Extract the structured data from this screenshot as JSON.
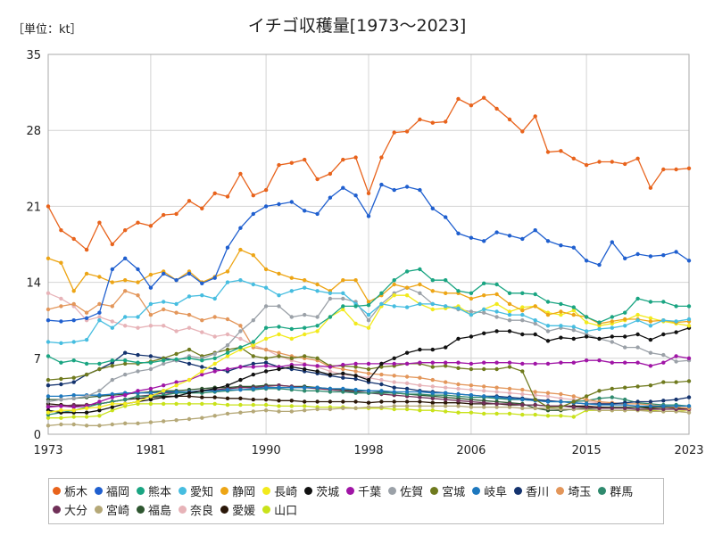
{
  "unit_label": "［単位：kt］",
  "chart_data": {
    "type": "line",
    "title": "イチゴ収穫量[1973〜2023]",
    "xlabel": "",
    "ylabel": "",
    "xlim": [
      1973,
      2023
    ],
    "ylim": [
      0,
      35
    ],
    "xticks": [
      1973,
      1981,
      1990,
      1998,
      2006,
      2015,
      2023
    ],
    "yticks": [
      0,
      7,
      14,
      21,
      28,
      35
    ],
    "grid": true,
    "legend_position": "bottom",
    "series": [
      {
        "name": "栃木",
        "color": "#e8631c",
        "start": 1973,
        "values": [
          21.0,
          18.8,
          18.0,
          17.0,
          19.5,
          17.5,
          18.8,
          19.5,
          19.2,
          20.2,
          20.3,
          21.5,
          20.8,
          22.2,
          21.9,
          24.0,
          22.0,
          22.5,
          24.8,
          25.0,
          25.3,
          23.5,
          24.0,
          25.3,
          25.5,
          22.2,
          25.5,
          27.8,
          27.9,
          29.0,
          28.7,
          28.8,
          30.9,
          30.3,
          31.0,
          30.0,
          29.0,
          27.9,
          29.3,
          26.0,
          26.1,
          25.4,
          24.8,
          25.1,
          25.1,
          24.9,
          25.4,
          22.7,
          24.4,
          24.4,
          24.5
        ]
      },
      {
        "name": "福岡",
        "color": "#1f5fcf",
        "start": 1973,
        "values": [
          10.5,
          10.4,
          10.5,
          10.7,
          11.2,
          15.2,
          16.2,
          15.2,
          13.5,
          14.8,
          14.2,
          14.8,
          13.9,
          14.4,
          17.2,
          19.0,
          20.3,
          21.0,
          21.2,
          21.4,
          20.6,
          20.3,
          21.8,
          22.7,
          22.0,
          20.1,
          23.0,
          22.5,
          22.8,
          22.5,
          20.8,
          20.0,
          18.5,
          18.1,
          17.8,
          18.6,
          18.3,
          18.0,
          18.8,
          17.8,
          17.4,
          17.2,
          16.0,
          15.6,
          17.7,
          16.2,
          16.6,
          16.4,
          16.5,
          16.8,
          16.0
        ]
      },
      {
        "name": "熊本",
        "color": "#1aa582",
        "start": 1973,
        "values": [
          7.2,
          6.6,
          6.8,
          6.5,
          6.5,
          6.8,
          6.8,
          6.6,
          6.6,
          6.8,
          6.9,
          7.0,
          6.8,
          7.0,
          7.5,
          8.0,
          8.5,
          9.8,
          9.9,
          9.7,
          9.8,
          10.0,
          10.8,
          11.8,
          11.8,
          11.9,
          13.0,
          14.2,
          15.0,
          15.2,
          14.2,
          14.2,
          13.2,
          13.0,
          13.9,
          13.8,
          13.0,
          13.0,
          12.9,
          12.2,
          12.0,
          11.7,
          10.8,
          10.3,
          10.8,
          11.2,
          12.5,
          12.2,
          12.2,
          11.8,
          11.8
        ]
      },
      {
        "name": "愛知",
        "color": "#46bde0",
        "start": 1973,
        "values": [
          8.5,
          8.4,
          8.5,
          8.7,
          10.5,
          9.8,
          10.8,
          10.8,
          12.0,
          12.2,
          12.0,
          12.7,
          12.8,
          12.5,
          14.0,
          14.2,
          13.8,
          13.5,
          12.8,
          13.2,
          13.5,
          13.2,
          13.0,
          13.0,
          12.0,
          11.0,
          12.0,
          11.8,
          11.7,
          12.0,
          12.0,
          11.8,
          11.6,
          11.0,
          11.5,
          11.3,
          11.0,
          11.0,
          10.5,
          10.0,
          10.0,
          9.9,
          9.5,
          9.7,
          9.8,
          10.0,
          10.5,
          10.0,
          10.5,
          10.4,
          10.6
        ]
      },
      {
        "name": "静岡",
        "color": "#eda515",
        "start": 1973,
        "values": [
          16.2,
          15.8,
          13.2,
          14.8,
          14.5,
          14.0,
          14.2,
          14.0,
          14.7,
          15.0,
          14.2,
          15.0,
          14.0,
          14.5,
          15.0,
          17.0,
          16.5,
          15.2,
          14.8,
          14.4,
          14.2,
          13.8,
          13.2,
          14.2,
          14.2,
          12.2,
          12.8,
          13.8,
          13.5,
          13.8,
          13.2,
          13.0,
          13.0,
          12.5,
          12.8,
          12.9,
          12.0,
          11.4,
          11.8,
          11.0,
          11.3,
          11.0,
          10.8,
          10.2,
          10.4,
          10.6,
          10.6,
          10.4,
          10.5,
          10.3,
          10.4
        ]
      },
      {
        "name": "長崎",
        "color": "#f2ea1c",
        "start": 1973,
        "values": [
          2.0,
          2.2,
          2.2,
          2.4,
          2.5,
          2.8,
          2.8,
          3.0,
          3.5,
          4.0,
          4.5,
          5.0,
          5.8,
          6.5,
          7.2,
          7.8,
          8.2,
          8.8,
          9.2,
          8.8,
          9.2,
          9.5,
          10.8,
          11.5,
          10.2,
          9.8,
          11.8,
          12.8,
          12.8,
          12.0,
          11.5,
          11.6,
          11.8,
          11.0,
          11.5,
          12.0,
          11.3,
          11.7,
          11.8,
          11.2,
          11.0,
          11.4,
          10.3,
          10.0,
          10.2,
          10.5,
          11.0,
          10.7,
          10.4,
          10.2,
          10.0
        ]
      },
      {
        "name": "茨城",
        "color": "#111111",
        "start": 1973,
        "values": [
          2.2,
          2.0,
          2.0,
          2.0,
          2.2,
          2.5,
          2.8,
          3.0,
          3.2,
          3.4,
          3.5,
          3.8,
          4.0,
          4.2,
          4.5,
          5.0,
          5.5,
          5.8,
          6.0,
          6.2,
          6.0,
          5.8,
          5.5,
          5.6,
          5.4,
          5.0,
          6.5,
          7.0,
          7.5,
          7.8,
          7.8,
          8.0,
          8.8,
          9.0,
          9.3,
          9.5,
          9.5,
          9.2,
          9.2,
          8.6,
          8.9,
          8.8,
          9.0,
          8.8,
          9.0,
          9.0,
          9.2,
          8.7,
          9.2,
          9.4,
          9.8
        ]
      },
      {
        "name": "千葉",
        "color": "#a015a6",
        "start": 1973,
        "values": [
          2.5,
          2.6,
          2.5,
          2.6,
          3.0,
          3.4,
          3.6,
          4.0,
          4.2,
          4.5,
          4.8,
          5.0,
          5.5,
          5.8,
          6.0,
          6.2,
          6.2,
          6.3,
          6.2,
          6.4,
          6.4,
          6.3,
          6.2,
          6.4,
          6.5,
          6.5,
          6.5,
          6.5,
          6.5,
          6.6,
          6.6,
          6.6,
          6.6,
          6.5,
          6.6,
          6.6,
          6.6,
          6.5,
          6.5,
          6.5,
          6.6,
          6.6,
          6.8,
          6.8,
          6.6,
          6.6,
          6.6,
          6.3,
          6.6,
          7.2,
          7.0
        ]
      },
      {
        "name": "佐賀",
        "color": "#9ba1a8",
        "start": 1973,
        "values": [
          3.0,
          3.2,
          3.3,
          3.5,
          4.0,
          5.0,
          5.5,
          5.8,
          6.0,
          6.5,
          6.8,
          7.2,
          7.0,
          7.4,
          8.2,
          9.5,
          10.5,
          11.8,
          11.8,
          10.8,
          11.0,
          10.8,
          12.5,
          12.5,
          12.2,
          10.5,
          12.0,
          13.0,
          13.5,
          13.0,
          12.0,
          11.8,
          11.5,
          11.3,
          11.2,
          10.8,
          10.5,
          10.5,
          10.2,
          9.5,
          9.8,
          9.6,
          9.2,
          8.8,
          8.5,
          8.0,
          8.0,
          7.5,
          7.3,
          6.7,
          6.8
        ]
      },
      {
        "name": "宮城",
        "color": "#6f7a1e",
        "start": 1973,
        "values": [
          5.0,
          5.1,
          5.2,
          5.5,
          6.0,
          6.3,
          6.5,
          6.5,
          6.7,
          7.0,
          7.4,
          7.8,
          7.2,
          7.5,
          7.8,
          8.0,
          7.2,
          7.0,
          7.2,
          7.0,
          7.2,
          7.0,
          6.3,
          6.3,
          6.2,
          6.0,
          6.2,
          6.3,
          6.5,
          6.5,
          6.2,
          6.3,
          6.1,
          6.0,
          6.0,
          6.0,
          6.2,
          5.8,
          3.2,
          2.5,
          2.5,
          3.0,
          3.5,
          4.0,
          4.2,
          4.3,
          4.4,
          4.5,
          4.8,
          4.8,
          4.9
        ]
      },
      {
        "name": "岐阜",
        "color": "#1d78be",
        "start": 1973,
        "values": [
          3.5,
          3.5,
          3.6,
          3.6,
          3.6,
          3.7,
          3.8,
          3.8,
          3.8,
          3.9,
          3.9,
          3.9,
          4.0,
          4.0,
          4.1,
          4.1,
          4.2,
          4.3,
          4.3,
          4.3,
          4.3,
          4.3,
          4.2,
          4.2,
          4.1,
          4.0,
          4.0,
          3.9,
          3.9,
          3.9,
          3.8,
          3.8,
          3.7,
          3.6,
          3.5,
          3.4,
          3.3,
          3.2,
          3.1,
          3.0,
          3.0,
          2.9,
          2.8,
          2.7,
          2.7,
          2.7,
          2.6,
          2.6,
          2.6,
          2.6,
          2.6
        ]
      },
      {
        "name": "香川",
        "color": "#14336e",
        "start": 1973,
        "values": [
          4.5,
          4.6,
          4.8,
          5.5,
          6.0,
          6.6,
          7.5,
          7.3,
          7.2,
          7.0,
          6.8,
          6.5,
          6.2,
          6.0,
          5.8,
          6.2,
          6.5,
          6.6,
          6.2,
          6.0,
          5.8,
          5.6,
          5.4,
          5.2,
          5.1,
          4.8,
          4.6,
          4.3,
          4.2,
          4.0,
          3.9,
          3.8,
          3.7,
          3.6,
          3.5,
          3.5,
          3.4,
          3.3,
          3.2,
          3.1,
          3.0,
          2.9,
          2.8,
          2.8,
          2.8,
          2.9,
          3.0,
          3.0,
          3.1,
          3.2,
          3.4
        ]
      },
      {
        "name": "埼玉",
        "color": "#e3965a",
        "start": 1973,
        "values": [
          11.5,
          11.8,
          12.0,
          11.2,
          12.0,
          11.8,
          13.2,
          12.8,
          11.0,
          11.5,
          11.2,
          11.0,
          10.5,
          10.8,
          10.6,
          10.0,
          8.0,
          7.8,
          7.5,
          7.2,
          7.0,
          6.8,
          6.2,
          6.0,
          5.8,
          5.6,
          5.5,
          5.4,
          5.3,
          5.2,
          5.0,
          4.8,
          4.6,
          4.5,
          4.4,
          4.3,
          4.2,
          4.1,
          3.9,
          3.8,
          3.7,
          3.5,
          3.2,
          3.0,
          2.9,
          2.8,
          2.8,
          2.7,
          2.6,
          2.5,
          2.4
        ]
      },
      {
        "name": "群馬",
        "color": "#2f8a6e",
        "start": 1973,
        "values": [
          1.8,
          2.0,
          2.2,
          2.5,
          2.8,
          3.0,
          3.2,
          3.5,
          3.5,
          3.6,
          3.8,
          3.8,
          3.8,
          3.9,
          4.0,
          4.1,
          4.1,
          4.2,
          4.2,
          4.1,
          4.0,
          4.0,
          3.9,
          3.9,
          3.8,
          3.8,
          3.8,
          3.8,
          3.7,
          3.7,
          3.6,
          3.6,
          3.5,
          3.4,
          3.4,
          3.3,
          3.2,
          3.2,
          3.1,
          3.0,
          3.0,
          3.0,
          3.1,
          3.3,
          3.4,
          3.2,
          2.9,
          2.8,
          2.7,
          2.7,
          2.6
        ]
      },
      {
        "name": "大分",
        "color": "#703058",
        "start": 1973,
        "values": [
          2.6,
          2.6,
          2.7,
          2.7,
          2.8,
          3.0,
          3.2,
          3.5,
          3.6,
          3.8,
          3.8,
          3.9,
          4.0,
          4.1,
          4.2,
          4.3,
          4.3,
          4.4,
          4.5,
          4.4,
          4.3,
          4.2,
          4.1,
          4.0,
          3.9,
          3.8,
          3.7,
          3.6,
          3.5,
          3.4,
          3.3,
          3.2,
          3.1,
          3.0,
          2.9,
          2.8,
          2.8,
          2.7,
          2.7,
          2.6,
          2.6,
          2.5,
          2.5,
          2.4,
          2.4,
          2.4,
          2.3,
          2.3,
          2.3,
          2.3,
          2.3
        ]
      },
      {
        "name": "宮崎",
        "color": "#b5a877",
        "start": 1973,
        "values": [
          0.8,
          0.9,
          0.9,
          0.8,
          0.8,
          0.9,
          1.0,
          1.0,
          1.1,
          1.2,
          1.3,
          1.4,
          1.5,
          1.7,
          1.9,
          2.0,
          2.1,
          2.2,
          2.1,
          2.1,
          2.2,
          2.3,
          2.3,
          2.4,
          2.4,
          2.5,
          2.5,
          2.6,
          2.6,
          2.6,
          2.6,
          2.6,
          2.6,
          2.5,
          2.5,
          2.5,
          2.5,
          2.4,
          2.4,
          2.4,
          2.3,
          2.3,
          2.3,
          2.2,
          2.2,
          2.2,
          2.2,
          2.1,
          2.1,
          2.1,
          2.0
        ]
      },
      {
        "name": "福島",
        "color": "#2e5630",
        "start": 1973,
        "values": [
          3.2,
          3.2,
          3.3,
          3.4,
          3.5,
          3.6,
          3.7,
          3.8,
          3.9,
          4.0,
          4.0,
          4.1,
          4.2,
          4.3,
          4.3,
          4.4,
          4.4,
          4.5,
          4.5,
          4.4,
          4.4,
          4.3,
          4.2,
          4.1,
          4.0,
          4.0,
          3.9,
          3.8,
          3.7,
          3.6,
          3.5,
          3.4,
          3.3,
          3.2,
          3.1,
          3.0,
          2.9,
          2.8,
          2.4,
          2.2,
          2.2,
          2.3,
          2.4,
          2.4,
          2.5,
          2.5,
          2.5,
          2.5,
          2.5,
          2.5,
          2.4
        ]
      },
      {
        "name": "奈良",
        "color": "#e7b3b8",
        "start": 1973,
        "values": [
          13.0,
          12.5,
          11.8,
          10.5,
          10.8,
          10.4,
          10.0,
          9.8,
          10.0,
          10.0,
          9.5,
          9.8,
          9.4,
          9.0,
          9.2,
          8.8,
          8.2,
          7.8,
          7.2,
          6.8,
          6.5,
          6.2,
          5.8,
          5.5,
          5.4,
          5.2,
          5.0,
          4.8,
          4.7,
          4.5,
          4.4,
          4.3,
          4.2,
          4.1,
          4.0,
          3.9,
          3.8,
          3.7,
          3.6,
          3.5,
          3.3,
          3.2,
          3.0,
          2.9,
          2.8,
          2.7,
          2.6,
          2.5,
          2.4,
          2.3,
          2.2
        ]
      },
      {
        "name": "愛媛",
        "color": "#2a1708",
        "start": 1973,
        "values": [
          2.8,
          2.7,
          2.6,
          2.7,
          2.8,
          3.0,
          3.2,
          3.3,
          3.4,
          3.5,
          3.5,
          3.5,
          3.4,
          3.4,
          3.3,
          3.3,
          3.2,
          3.2,
          3.1,
          3.1,
          3.0,
          3.0,
          3.0,
          3.0,
          3.0,
          2.9,
          3.0,
          3.0,
          3.0,
          3.0,
          2.9,
          2.9,
          2.9,
          2.8,
          2.8,
          2.8,
          2.7,
          2.7,
          2.7,
          2.6,
          2.6,
          2.6,
          2.6,
          2.5,
          2.5,
          2.5,
          2.5,
          2.4,
          2.4,
          2.4,
          2.4
        ]
      },
      {
        "name": "山口",
        "color": "#c9e21a",
        "start": 1973,
        "values": [
          1.5,
          1.5,
          1.6,
          1.6,
          1.7,
          2.2,
          2.6,
          2.8,
          2.8,
          2.8,
          2.8,
          2.8,
          2.8,
          2.8,
          2.7,
          2.7,
          2.7,
          2.7,
          2.6,
          2.6,
          2.6,
          2.5,
          2.5,
          2.5,
          2.4,
          2.4,
          2.4,
          2.3,
          2.3,
          2.2,
          2.2,
          2.1,
          2.0,
          2.0,
          1.9,
          1.9,
          1.9,
          1.8,
          1.8,
          1.7,
          1.7,
          1.6,
          2.2,
          2.2,
          2.2,
          2.2,
          2.2,
          2.2,
          2.1,
          2.1,
          2.2
        ]
      }
    ]
  }
}
